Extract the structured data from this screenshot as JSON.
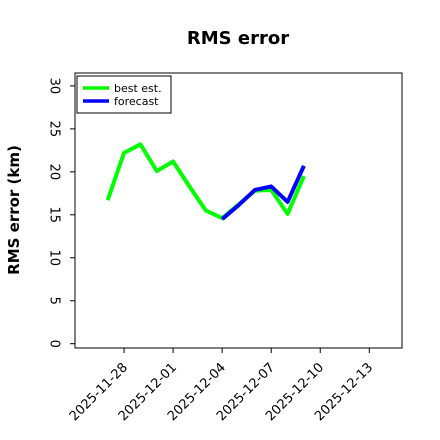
{
  "chart_data": {
    "type": "line",
    "title": "RMS error",
    "ylabel": "RMS error (km)",
    "xlabel": "",
    "ylim": [
      -0.5,
      31.5
    ],
    "xlim": [
      "2025-11-25",
      "2025-12-15"
    ],
    "yticks": [
      0,
      5,
      10,
      15,
      20,
      25,
      30
    ],
    "x_tick_labels": [
      "2025-11-28",
      "2025-12-01",
      "2025-12-04",
      "2025-12-07",
      "2025-12-10",
      "2025-12-13"
    ],
    "highlight_tick": "2025-12-04",
    "highlight_color": "#228b22",
    "legend_position": "upper left",
    "grid": false,
    "series": [
      {
        "name": "best est.",
        "color": "#00ff00",
        "x": [
          "2025-11-27",
          "2025-11-28",
          "2025-11-29",
          "2025-11-30",
          "2025-12-01",
          "2025-12-02",
          "2025-12-03",
          "2025-12-04",
          "2025-12-05",
          "2025-12-06",
          "2025-12-07",
          "2025-12-08",
          "2025-12-09"
        ],
        "y": [
          16.7,
          22.2,
          23.2,
          20.1,
          21.2,
          18.3,
          15.5,
          14.6,
          16.2,
          17.8,
          17.9,
          15.1,
          19.5
        ]
      },
      {
        "name": "forecast",
        "color": "#0000ff",
        "x": [
          "2025-12-04",
          "2025-12-05",
          "2025-12-06",
          "2025-12-07",
          "2025-12-08",
          "2025-12-09"
        ],
        "y": [
          14.5,
          16.1,
          17.9,
          18.3,
          16.5,
          20.7
        ]
      }
    ]
  }
}
